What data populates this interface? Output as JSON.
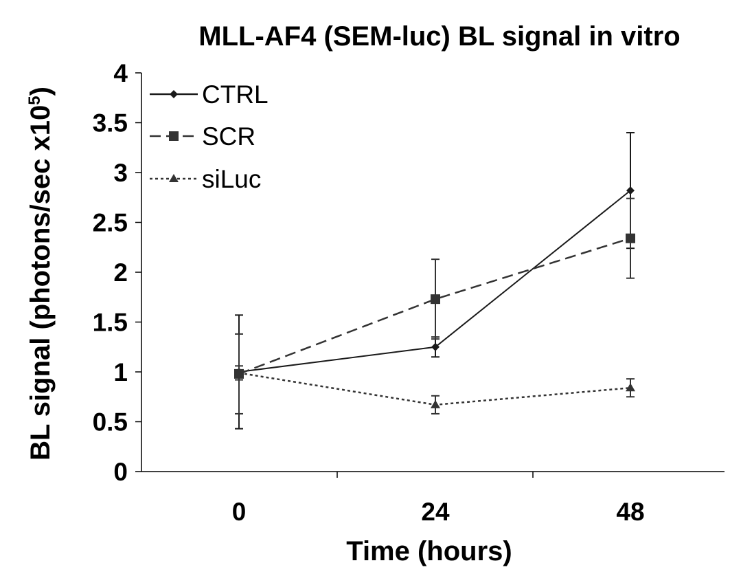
{
  "chart_data": {
    "type": "line",
    "title": "MLL-AF4 (SEM-luc) BL signal in vitro",
    "xlabel": "Time (hours)",
    "ylabel": "BL signal (photons/sec x10",
    "ylabel_superscript": "5",
    "ylabel_suffix": ")",
    "categories": [
      "0",
      "24",
      "48"
    ],
    "ylim": [
      0,
      4
    ],
    "yticks": [
      "0",
      "0.5",
      "1",
      "1.5",
      "2",
      "2.5",
      "3",
      "3.5",
      "4"
    ],
    "grid": false,
    "legend_position": "top-left",
    "series": [
      {
        "name": "CTRL",
        "style": "solid",
        "marker": "diamond",
        "values": [
          1.0,
          1.25,
          2.82
        ],
        "errors": [
          0.57,
          0.1,
          0.58
        ],
        "color": "#1a1a1a"
      },
      {
        "name": "SCR",
        "style": "dashed",
        "marker": "square",
        "values": [
          0.98,
          1.73,
          2.34
        ],
        "errors": [
          0.4,
          0.4,
          0.4
        ],
        "color": "#333333"
      },
      {
        "name": "siLuc",
        "style": "dotted",
        "marker": "triangle",
        "values": [
          0.99,
          0.67,
          0.84
        ],
        "errors": [
          0.07,
          0.09,
          0.09
        ],
        "color": "#333333"
      }
    ]
  }
}
